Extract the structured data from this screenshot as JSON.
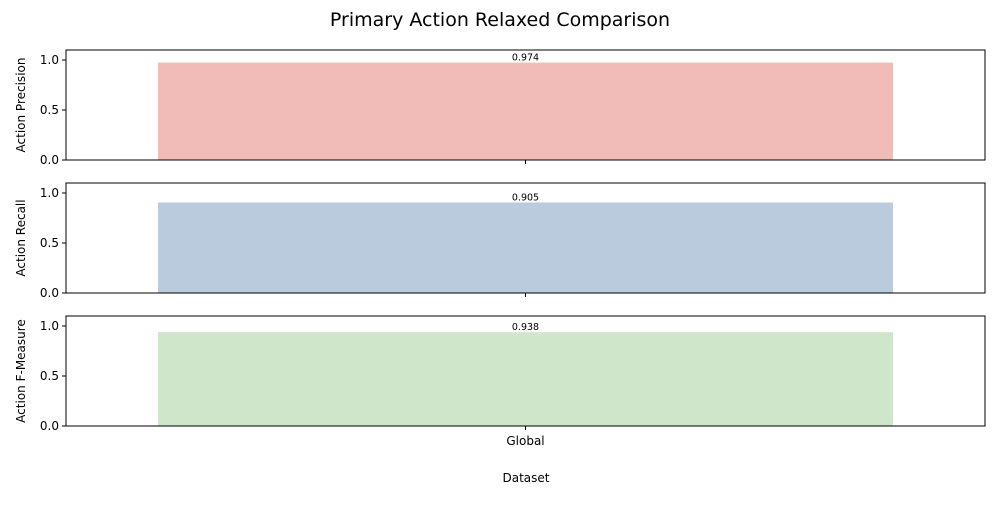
{
  "chart_data": {
    "type": "bar",
    "title": "Primary Action Relaxed Comparison",
    "xlabel": "Dataset",
    "categories": [
      "Global"
    ],
    "ylim": [
      0,
      1.1
    ],
    "yticks": [
      "0.0",
      "0.5",
      "1.0"
    ],
    "ytick_values": [
      0,
      0.5,
      1.0
    ],
    "grid": false,
    "legend": "none",
    "panels": [
      {
        "ylabel": "Action Precision",
        "values": [
          0.974
        ],
        "labels": [
          "0.974"
        ],
        "color": "#f1bbb8"
      },
      {
        "ylabel": "Action Recall",
        "values": [
          0.905
        ],
        "labels": [
          "0.905"
        ],
        "color": "#b9cbdd"
      },
      {
        "ylabel": "Action F-Measure",
        "values": [
          0.938
        ],
        "labels": [
          "0.938"
        ],
        "color": "#d0e6cb"
      }
    ]
  }
}
